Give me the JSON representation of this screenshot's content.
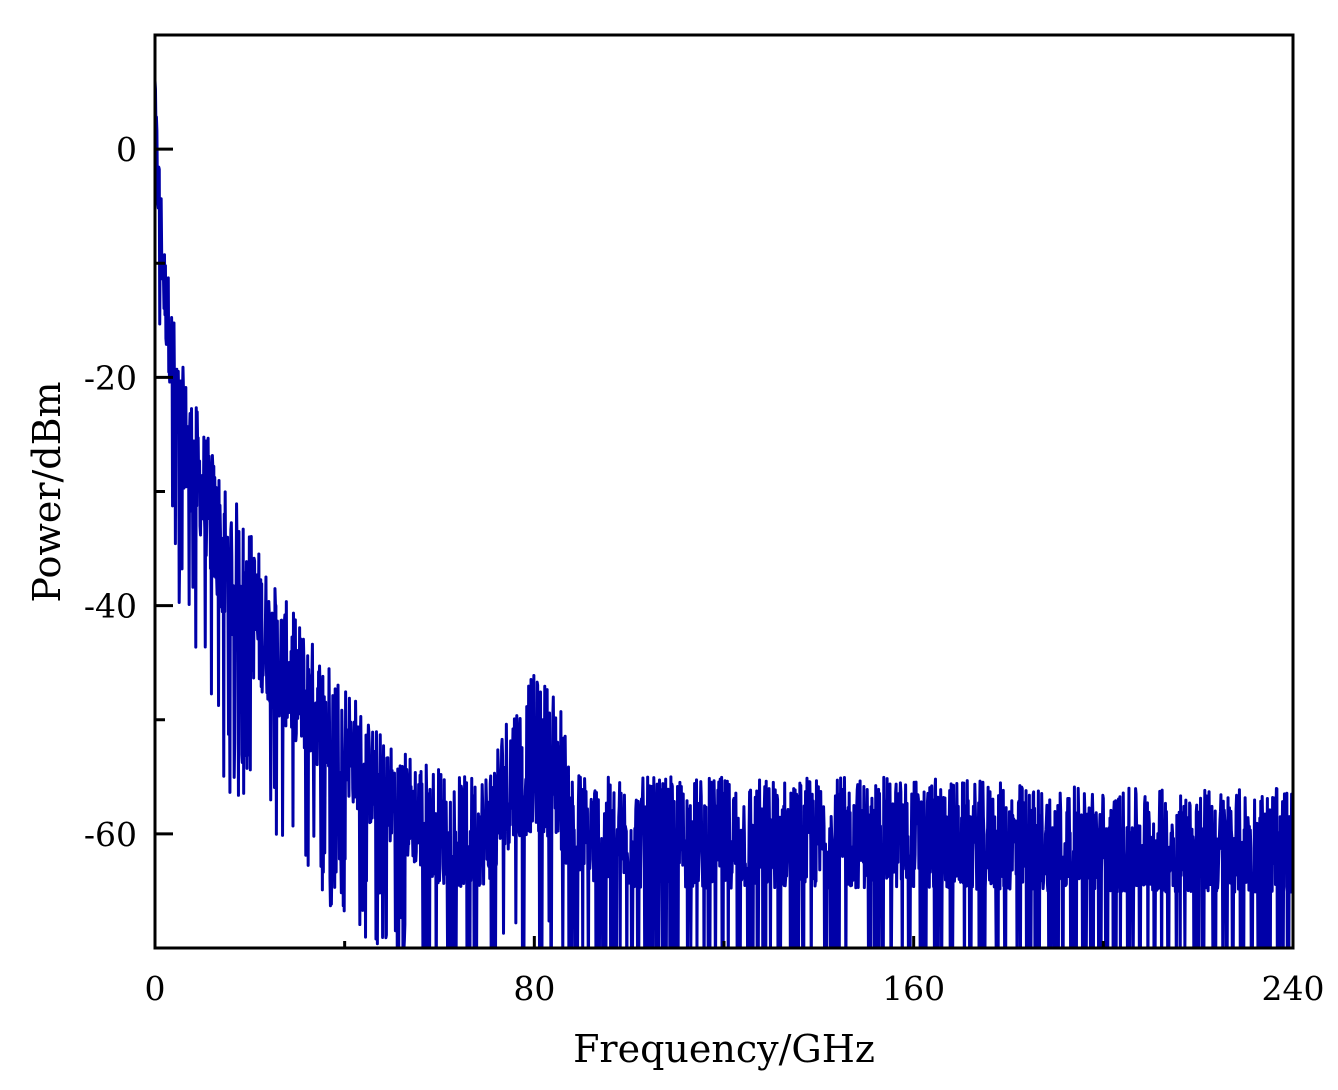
{
  "chart_data": {
    "type": "line",
    "title": "",
    "xlabel": "Frequency/GHz",
    "ylabel": "Power/dBm",
    "xlim": [
      0,
      240
    ],
    "ylim": [
      -70,
      10
    ],
    "x_ticks": [
      0,
      80,
      160,
      240
    ],
    "x_minor_ticks": [
      40,
      120,
      200
    ],
    "x_tick_labels": [
      "0",
      "80",
      "160",
      "240"
    ],
    "y_ticks": [
      0,
      -20,
      -40,
      -60
    ],
    "y_minor_ticks": [
      -10,
      -30,
      -50
    ],
    "y_tick_labels": [
      "0",
      "-20",
      "-40",
      "-60"
    ],
    "grid": false,
    "legend": "none",
    "series": [
      {
        "color": "#0000a8",
        "envelope": [
          {
            "x": 0,
            "peak": 6,
            "floor": -5
          },
          {
            "x": 2,
            "peak": -8,
            "floor": -20
          },
          {
            "x": 5,
            "peak": -18,
            "floor": -34
          },
          {
            "x": 10,
            "peak": -24,
            "floor": -40
          },
          {
            "x": 15,
            "peak": -29,
            "floor": -50
          },
          {
            "x": 20,
            "peak": -33,
            "floor": -53
          },
          {
            "x": 25,
            "peak": -38,
            "floor": -55
          },
          {
            "x": 30,
            "peak": -41,
            "floor": -58
          },
          {
            "x": 35,
            "peak": -44,
            "floor": -60
          },
          {
            "x": 40,
            "peak": -46,
            "floor": -62
          },
          {
            "x": 45,
            "peak": -50,
            "floor": -64
          },
          {
            "x": 50,
            "peak": -52,
            "floor": -66
          },
          {
            "x": 55,
            "peak": -53,
            "floor": -68
          },
          {
            "x": 60,
            "peak": -54,
            "floor": -70
          },
          {
            "x": 65,
            "peak": -55,
            "floor": -70
          },
          {
            "x": 70,
            "peak": -54,
            "floor": -70
          },
          {
            "x": 75,
            "peak": -48,
            "floor": -68
          },
          {
            "x": 80,
            "peak": -46,
            "floor": -67
          },
          {
            "x": 85,
            "peak": -47,
            "floor": -68
          },
          {
            "x": 88,
            "peak": -54,
            "floor": -70
          },
          {
            "x": 95,
            "peak": -55,
            "floor": -70
          },
          {
            "x": 120,
            "peak": -55,
            "floor": -70
          },
          {
            "x": 160,
            "peak": -55,
            "floor": -70
          },
          {
            "x": 200,
            "peak": -56,
            "floor": -70
          },
          {
            "x": 240,
            "peak": -56,
            "floor": -70
          }
        ]
      }
    ]
  }
}
